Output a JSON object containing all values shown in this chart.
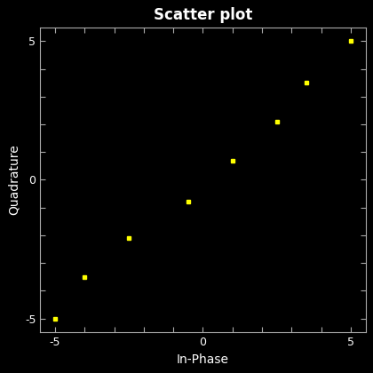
{
  "x": [
    -5,
    -4,
    -2.5,
    -0.5,
    1,
    2.5,
    3.5,
    5
  ],
  "y": [
    -5,
    -3.5,
    -2.1,
    -0.8,
    0.7,
    2.1,
    3.5,
    5
  ],
  "title": "Scatter plot",
  "xlabel": "In-Phase",
  "ylabel": "Quadrature",
  "xlim": [
    -5.5,
    5.5
  ],
  "ylim": [
    -5.5,
    5.5
  ],
  "xticks": [
    -5,
    -4,
    -3,
    -2,
    -1,
    0,
    1,
    2,
    3,
    4,
    5
  ],
  "yticks": [
    -5,
    -4,
    -3,
    -2,
    -1,
    0,
    1,
    2,
    3,
    4,
    5
  ],
  "xtick_labels": [
    "-5",
    "",
    "",
    "",
    "",
    "0",
    "",
    "",
    "",
    "",
    "5"
  ],
  "ytick_labels": [
    "-5",
    "",
    "",
    "",
    "",
    "0",
    "",
    "",
    "",
    "",
    "5"
  ],
  "marker_color": "#ffff00",
  "marker": "s",
  "marker_size": 3,
  "background_color": "#000000",
  "axes_color": "#000000",
  "text_color": "#ffffff",
  "tick_color": "#aaaaaa",
  "spine_color": "#aaaaaa",
  "title_fontsize": 12,
  "label_fontsize": 10,
  "tick_fontsize": 9
}
